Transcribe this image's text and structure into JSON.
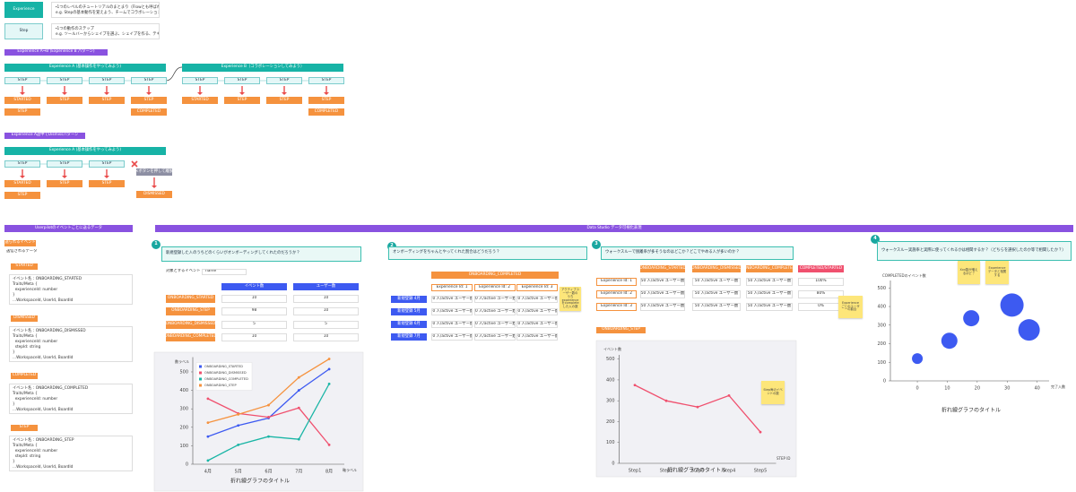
{
  "legend": [
    {
      "term": "Experience",
      "desc": [
        "・1つのレベルのチュートリアルのまとまり（Flowとも呼ばれる）",
        "e.g. Stepの基本動作を覚えよう、チームでコラボレーションしてみよう"
      ]
    },
    {
      "term": "Step",
      "desc": [
        "・1つの動作のステップ",
        "e.g. ツールバーからシェイプを選ぶ、シェイプを作る、テキストを入力"
      ]
    }
  ],
  "flows": [
    {
      "label": "Experience A⇒B (Experience B パターン)",
      "experiences": [
        {
          "title": "Experience A (基本操作をやってみよう)",
          "steps": [
            {
              "label": "STEP",
              "events": [
                "STARTED",
                "STEP"
              ]
            },
            {
              "label": "STEP",
              "events": [
                "STEP"
              ]
            },
            {
              "label": "STEP",
              "events": [
                "STEP"
              ]
            },
            {
              "label": "STEP",
              "events": [
                "STEP",
                "COMPLETED"
              ]
            }
          ]
        },
        {
          "title": "Experience B（コラボレーションしてみよう）",
          "steps": [
            {
              "label": "STEP",
              "events": [
                "STARTED"
              ]
            },
            {
              "label": "STEP",
              "events": [
                "STEP"
              ]
            },
            {
              "label": "STEP",
              "events": [
                "STEP"
              ]
            },
            {
              "label": "STEP",
              "events": [
                "STEP",
                "COMPLETED"
              ]
            }
          ]
        }
      ]
    },
    {
      "label": "Experience A途中でDismissパターン",
      "experiences": [
        {
          "title": "Experience A (基本操作をやってみよう)",
          "steps": [
            {
              "label": "STEP",
              "events": [
                "STARTED",
                "STEP"
              ]
            },
            {
              "label": "STEP",
              "events": [
                "STEP"
              ]
            },
            {
              "label": "STEP",
              "events": [
                "STEP"
              ]
            }
          ]
        }
      ],
      "exit": {
        "label": "×ボタンを押して離脱",
        "event": "DISMISSED"
      }
    }
  ],
  "events_panel": {
    "title": "Userpilotのイベントごとに送るデータ",
    "tag": "送られるイベント",
    "caption": "送信されるデータ",
    "items": [
      {
        "event": "STARTED",
        "lines": [
          "イベント名：ONBOARDING_STARTED",
          "Traits/Meta {",
          "  experienceId: number",
          "}",
          "...Workspaceld, UserId, BoardId"
        ]
      },
      {
        "event": "DISMISSED",
        "lines": [
          "イベント名：ONBOARDING_DISMISSED",
          "Traits/Meta {",
          "  experienceId: number",
          "  stepId: string",
          "}",
          "...Workspaceld, UserId, BoardId"
        ]
      },
      {
        "event": "COMPLETED",
        "lines": [
          "イベント名：ONBOARDING_COMPLETED",
          "Traits/Meta {",
          "  experienceId: number",
          "}",
          "...Workspaceld, UserId, BoardId"
        ]
      },
      {
        "event": "STEP",
        "lines": [
          "イベント名：ONBOARDING_STEP",
          "Traits/Meta {",
          "  experienceId: number",
          "  stepId: string",
          "}",
          "...Workspaceld, UserId, BoardId"
        ]
      }
    ]
  },
  "dashboard": {
    "title": "Data Studio データ可視化表現",
    "panels": [
      {
        "number": 1,
        "question": "新規登録した人のうちどのくらいがオンボーディングしてくれたのだろうか？",
        "table": {
          "filter_label": "対象とするイベント名",
          "filter_value": "name",
          "columns": [
            "イベント数",
            "ユーザー数"
          ],
          "rows": [
            {
              "label": "ONBOARDING_STARTED",
              "cells": [
                10,
                10
              ]
            },
            {
              "label": "ONBOARDING_STEP",
              "cells": [
                98,
                10
              ]
            },
            {
              "label": "ONBOARDING_DISMISSED",
              "cells": [
                5,
                5
              ]
            },
            {
              "label": "ONBOARDING_COMPLETED",
              "cells": [
                10,
                10
              ]
            }
          ]
        }
      },
      {
        "number": 2,
        "question": "オンボーディングをちゃんとやってくれた割合はどうだろう？",
        "table": {
          "header": "ONBOARDING_COMPLETED",
          "columns": [
            "Experience Id: 1",
            "Experience Id: 2",
            "Experience Id: 3"
          ],
          "rows": [
            {
              "label": "新規登録 4月",
              "cells": [
                "50 人/active ユーザー数",
                "50 人/active ユーザー数",
                "50 人/active ユーザー数"
              ]
            },
            {
              "label": "新規登録 5月",
              "cells": [
                "50 人/active ユーザー数",
                "50 人/active ユーザー数",
                "50 人/active ユーザー数"
              ]
            },
            {
              "label": "新規登録 6月",
              "cells": [
                "50 人/active ユーザー数",
                "50 人/active ユーザー数",
                "50 人/active ユーザー数"
              ]
            },
            {
              "label": "新規登録 7月",
              "cells": [
                "50 人/active ユーザー数",
                "50 人/active ユーザー数",
                "50 人/active ユーザー数"
              ]
            }
          ]
        },
        "sticky": "アクティブユーザー数のうち experienceをcompleteした人の数"
      },
      {
        "number": 3,
        "question": "ウォークスルーで脱離率が多そうなのはどこか？どこでやめる人が多いのか？",
        "table": {
          "columns": [
            "ONBOARDING_STARTED",
            "ONBOARDING_DISMISSED",
            "ONBOARDING_COMPLETED",
            "COMPLETED/STARTED"
          ],
          "rows": [
            {
              "label": "Experience Id: 1",
              "cells": [
                "50 人/active ユーザー数",
                "50 人/active ユーザー数",
                "50 人/active ユーザー数",
                "100%"
              ]
            },
            {
              "label": "Experience Id: 2",
              "cells": [
                "50 人/active ユーザー数",
                "50 人/active ユーザー数",
                "50 人/active ユーザー数",
                "80%"
              ]
            },
            {
              "label": "Experience Id: 3",
              "cells": [
                "50 人/active ユーザー数",
                "50 人/active ユーザー数",
                "50 人/active ユーザー数",
                "0%"
              ]
            }
          ]
        },
        "sticky": "Experience ごとのユーザーの割合",
        "step_label": "ONBOARDING_STEP",
        "chart_sticky": "Step毎のイベントの数"
      },
      {
        "number": 4,
        "question": "ウォークスルー実施率と実際に使ってくれるかは相関するか？（どちらを選択したのか等で相関したか？）",
        "stickies": [
          "Xxx数が増えるほど？",
          "Experienceデータと相関する"
        ]
      }
    ]
  },
  "chart_data": [
    {
      "type": "line",
      "title": "折れ線グラフのタイトル",
      "x_label": "軸ラベル",
      "y_label": "数ラベル",
      "categories": [
        "4月",
        "5月",
        "6月",
        "7月",
        "8月"
      ],
      "series": [
        {
          "name": "ONBOARDING_STARTED",
          "color": "#3d5af1",
          "values": [
            150,
            210,
            250,
            400,
            515
          ]
        },
        {
          "name": "ONBOARDING_DISMISSED",
          "color": "#f0506e",
          "values": [
            355,
            275,
            255,
            305,
            105
          ]
        },
        {
          "name": "ONBOARDING_COMPLETED",
          "color": "#19b5a5",
          "values": [
            20,
            105,
            150,
            135,
            435
          ]
        },
        {
          "name": "ONBOARDING_STEP",
          "color": "#f5923e",
          "values": [
            225,
            270,
            320,
            470,
            570
          ]
        }
      ],
      "ylim": [
        0,
        580
      ],
      "yticks": [
        0,
        100,
        200,
        300,
        400,
        500
      ],
      "grid": false,
      "legend": "upper left"
    },
    {
      "type": "line",
      "title": "折れ線グラフのタイトル",
      "x_label": "STEP ID",
      "y_label": "イベント数",
      "categories": [
        "Step1",
        "Step2",
        "Step3",
        "Step4",
        "Step5"
      ],
      "values": [
        375,
        300,
        270,
        325,
        150
      ],
      "color": "#f0506e",
      "ylim": [
        0,
        520
      ],
      "yticks": [
        0,
        100,
        200,
        300,
        400,
        500
      ],
      "grid": false
    },
    {
      "type": "scatter",
      "title": "折れ線グラフのタイトル",
      "x_label": "完了人数",
      "y_label": "COMPLETEDのイベント数",
      "x": [
        0,
        10.7,
        18,
        31.6,
        37.3
      ],
      "values": [
        120,
        216,
        337,
        408,
        274
      ],
      "sizes": [
        6,
        9,
        9,
        13,
        12
      ],
      "color": "#3d5af1",
      "xlim": [
        -9,
        44
      ],
      "xticks": [
        0,
        10,
        20,
        30,
        40
      ],
      "ylim": [
        0,
        540
      ],
      "yticks": [
        0,
        100,
        200,
        300,
        400,
        500
      ],
      "grid": false
    }
  ]
}
